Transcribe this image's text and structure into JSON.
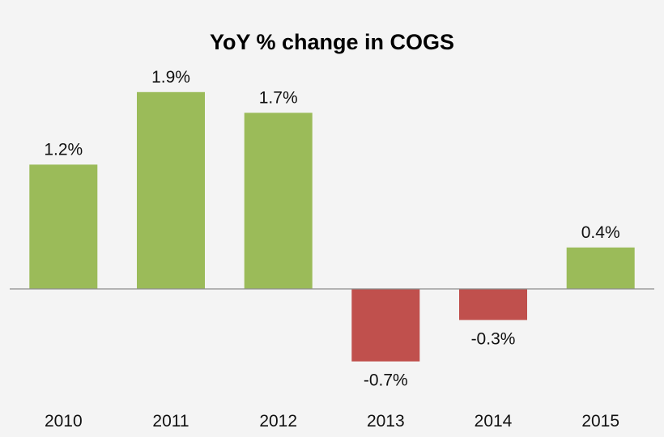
{
  "chart_data": {
    "type": "bar",
    "title": "YoY % change in COGS",
    "xlabel": "",
    "ylabel": "",
    "categories": [
      "2010",
      "2011",
      "2012",
      "2013",
      "2014",
      "2015"
    ],
    "values": [
      1.2,
      1.9,
      1.7,
      -0.7,
      -0.3,
      0.4
    ],
    "value_labels": [
      "1.2%",
      "1.9%",
      "1.7%",
      "-0.7%",
      "-0.3%",
      "0.4%"
    ],
    "ylim": [
      -1.0,
      2.0
    ],
    "grid": false,
    "legend": "none",
    "colors": {
      "positive": "#9bbb59",
      "negative": "#c0504d",
      "axis": "#8c8c8c",
      "background": "#f4f4f4"
    }
  }
}
